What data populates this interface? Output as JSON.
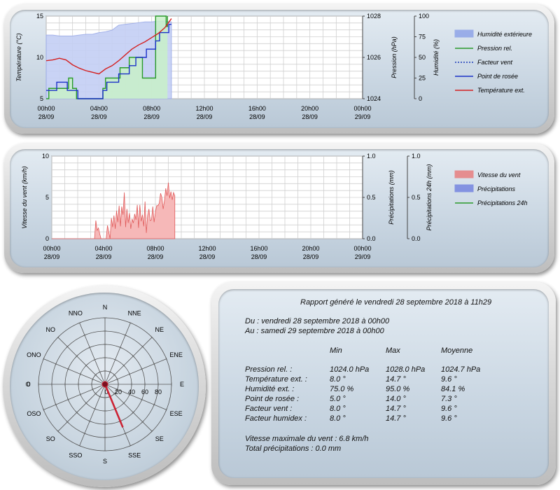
{
  "chart_data": [
    {
      "type": "line",
      "x_ticks": [
        "00h00 28/09",
        "04h00 28/09",
        "08h00 28/09",
        "12h00 28/09",
        "16h00 28/09",
        "20h00 28/09",
        "00h00 29/09"
      ],
      "ylabel_left": "Température (°C)",
      "ylabel_right1": "Pression (hPa)",
      "ylabel_right2": "Humidité (%)",
      "y_ticks_left": [
        "5",
        "10",
        "15"
      ],
      "y_ticks_right1": [
        "1024",
        "1026",
        "1028"
      ],
      "y_ticks_right2": [
        "0",
        "25",
        "50",
        "75",
        "100"
      ],
      "ylim_left": [
        5,
        15
      ],
      "ylim_right1": [
        1024,
        1028
      ],
      "ylim_right2": [
        0,
        100
      ],
      "grid": true,
      "legend_position": "right",
      "series": [
        {
          "name": "Humidité extérieure",
          "axis": "humidity",
          "style": "area",
          "color": "#8aa0e8",
          "x": [
            0,
            0.5,
            1,
            1.5,
            2,
            2.5,
            3,
            3.5,
            4,
            4.5,
            5,
            5.5,
            6,
            6.5,
            7,
            7.5,
            8,
            8.5,
            9,
            9.5
          ],
          "y": [
            77,
            77,
            76,
            76,
            76,
            77,
            78,
            78,
            80,
            81,
            83,
            89,
            90,
            91,
            92,
            93,
            93,
            94,
            94,
            93
          ]
        },
        {
          "name": "Pression rel.",
          "axis": "pressure",
          "style": "step",
          "color": "#2a9a2a",
          "x": [
            0,
            0.2,
            0.8,
            1.1,
            1.7,
            2,
            2.3,
            3.7,
            4,
            4.3,
            4.5,
            5.3,
            5.6,
            6,
            6.3,
            7,
            7.3,
            8,
            8.3,
            8.6,
            9.1,
            9.2
          ],
          "y": [
            1024,
            1024.5,
            1024.5,
            1024.5,
            1025,
            1024.5,
            1024,
            1024,
            1024,
            1024.5,
            1025,
            1025,
            1025.5,
            1025.5,
            1026,
            1026,
            1025,
            1025,
            1028,
            1028,
            1027.5,
            1028
          ]
        },
        {
          "name": "Facteur vent",
          "axis": "temperature",
          "style": "dashed",
          "color": "#1a3ab8",
          "x": [],
          "y": []
        },
        {
          "name": "Point de rosée",
          "axis": "temperature",
          "style": "step",
          "color": "#1a30c8",
          "x": [
            0,
            0.4,
            0.8,
            1,
            1.6,
            2,
            2.4,
            3.6,
            3.9,
            4.3,
            4.6,
            5.1,
            5.5,
            6,
            6.3,
            6.8,
            7,
            7.6,
            8,
            8.3,
            8.6,
            9,
            9.3,
            9.5
          ],
          "y": [
            6,
            6,
            7,
            7,
            6,
            6,
            5,
            5,
            5,
            6,
            7,
            7,
            8,
            8,
            9,
            10,
            10,
            11,
            11,
            12,
            13,
            13,
            14,
            14
          ]
        },
        {
          "name": "Température ext.",
          "axis": "temperature",
          "style": "line",
          "color": "#d42020",
          "x": [
            0,
            0.5,
            1,
            1.5,
            2,
            2.5,
            3,
            3.5,
            4,
            4.5,
            5,
            5.5,
            6,
            6.5,
            7,
            7.5,
            8,
            8.5,
            9,
            9.5
          ],
          "y": [
            9.6,
            9.7,
            9.9,
            9.7,
            9.1,
            8.7,
            8.4,
            8.2,
            8.0,
            8.6,
            9.0,
            9.6,
            10.3,
            11.0,
            11.5,
            11.9,
            12.4,
            12.9,
            13.6,
            14.7
          ]
        }
      ]
    },
    {
      "type": "area",
      "x_ticks": [
        "00h00 28/09",
        "04h00 28/09",
        "08h00 28/09",
        "12h00 28/09",
        "16h00 28/09",
        "20h00 28/09",
        "00h00 29/09"
      ],
      "ylabel_left": "Vitesse du vent (km/h)",
      "ylabel_right1": "Précipitations (mm)",
      "ylabel_right2": "Précipitations 24h (mm)",
      "y_ticks_left": [
        "0",
        "5",
        "10"
      ],
      "y_ticks_right1": [
        "0.0",
        "0.5",
        "1.0"
      ],
      "y_ticks_right2": [
        "0.0",
        "0.5",
        "1.0"
      ],
      "ylim_left": [
        0,
        10
      ],
      "ylim_right1": [
        0,
        1
      ],
      "ylim_right2": [
        0,
        1
      ],
      "grid": true,
      "legend_position": "right",
      "series": [
        {
          "name": "Vitesse du vent",
          "color": "#e87878",
          "x": [
            0,
            3.3,
            3.4,
            3.5,
            3.6,
            3.7,
            3.8,
            3.9,
            4.0,
            4.1,
            4.2,
            4.3,
            4.4,
            4.5,
            4.6,
            4.7,
            4.8,
            4.9,
            5.0,
            5.1,
            5.2,
            5.3,
            5.4,
            5.5,
            5.6,
            5.7,
            5.8,
            5.9,
            6.0,
            6.1,
            6.2,
            6.3,
            6.4,
            6.5,
            6.6,
            6.7,
            6.8,
            6.9,
            7.0,
            7.1,
            7.2,
            7.3,
            7.4,
            7.5,
            7.6,
            7.7,
            7.8,
            7.9,
            8.0,
            8.1,
            8.2,
            8.3,
            8.4,
            8.5,
            8.6,
            8.7,
            8.8,
            8.9,
            9.0,
            9.1,
            9.2,
            9.3,
            9.4,
            9.5
          ],
          "y": [
            0,
            0,
            2.2,
            1.0,
            1.3,
            0.6,
            0,
            0,
            0,
            0,
            0,
            1.6,
            0.8,
            0,
            2.5,
            1.4,
            2.8,
            1.2,
            3.4,
            2.0,
            4.0,
            1.5,
            3.9,
            2.9,
            5.6,
            1.4,
            3.6,
            1.9,
            3.1,
            1.2,
            2.4,
            1.9,
            3.0,
            2.3,
            4.1,
            1.3,
            4.1,
            2.1,
            2.9,
            1.5,
            4.5,
            0.7,
            2.8,
            3.6,
            2.2,
            2.3,
            3.9,
            2.0,
            3.2,
            4.0,
            4.0,
            4.3,
            5.5,
            5.0,
            3.6,
            4.6,
            6.1,
            5.2,
            6.8,
            4.9,
            5.7,
            4.7,
            5.6,
            5.2
          ]
        },
        {
          "name": "Précipitations",
          "color": "#7080e0",
          "x": [],
          "y": []
        },
        {
          "name": "Précipitations 24h",
          "color": "#2a9a2a",
          "x": [],
          "y": []
        }
      ]
    },
    {
      "type": "polar",
      "directions": [
        "N",
        "NNE",
        "NE",
        "ENE",
        "E",
        "ESE",
        "SE",
        "SSE",
        "S",
        "SSO",
        "SO",
        "OSO",
        "O",
        "ONO",
        "NO",
        "NNO"
      ],
      "radial_ticks": [
        "0",
        "20",
        "40",
        "60",
        "80"
      ],
      "rlim": [
        0,
        100
      ],
      "series": [
        {
          "name": "wind-direction",
          "color": "#cc2233",
          "direction_deg": 157.5,
          "values": [
            0,
            5,
            10,
            15,
            20,
            25,
            30,
            35,
            40,
            45,
            50,
            55,
            60,
            65,
            70,
            75
          ],
          "current": 70
        }
      ]
    }
  ],
  "report": {
    "title": "Rapport généré le vendredi 28 septembre 2018 à 11h29",
    "from": "Du : vendredi 28 septembre 2018 à 00h00",
    "to": "Au : samedi 29 septembre 2018 à 00h00",
    "headers": [
      "Min",
      "Max",
      "Moyenne"
    ],
    "rows": [
      {
        "label": "Pression rel. :",
        "min": "1024.0 hPa",
        "max": "1028.0 hPa",
        "avg": "1024.7 hPa"
      },
      {
        "label": "Température ext. :",
        "min": "8.0 °",
        "max": "14.7 °",
        "avg": "9.6 °"
      },
      {
        "label": "Humidité ext. :",
        "min": "75.0 %",
        "max": "95.0 %",
        "avg": "84.1 %"
      },
      {
        "label": "Point de rosée :",
        "min": "5.0 °",
        "max": "14.0 °",
        "avg": "7.3 °"
      },
      {
        "label": "Facteur vent :",
        "min": "8.0 °",
        "max": "14.7 °",
        "avg": "9.6 °"
      },
      {
        "label": "Facteur humidex :",
        "min": "8.0 °",
        "max": "14.7 °",
        "avg": "9.6 °"
      }
    ],
    "wind_max": "Vitesse maximale du vent : 6.8 km/h",
    "total_precip": "Total précipitations : 0.0 mm"
  },
  "colors": {
    "panel_fill": "#c9d6e2",
    "grid": "#c8c8c8",
    "plot_bg": "#ffffff"
  }
}
